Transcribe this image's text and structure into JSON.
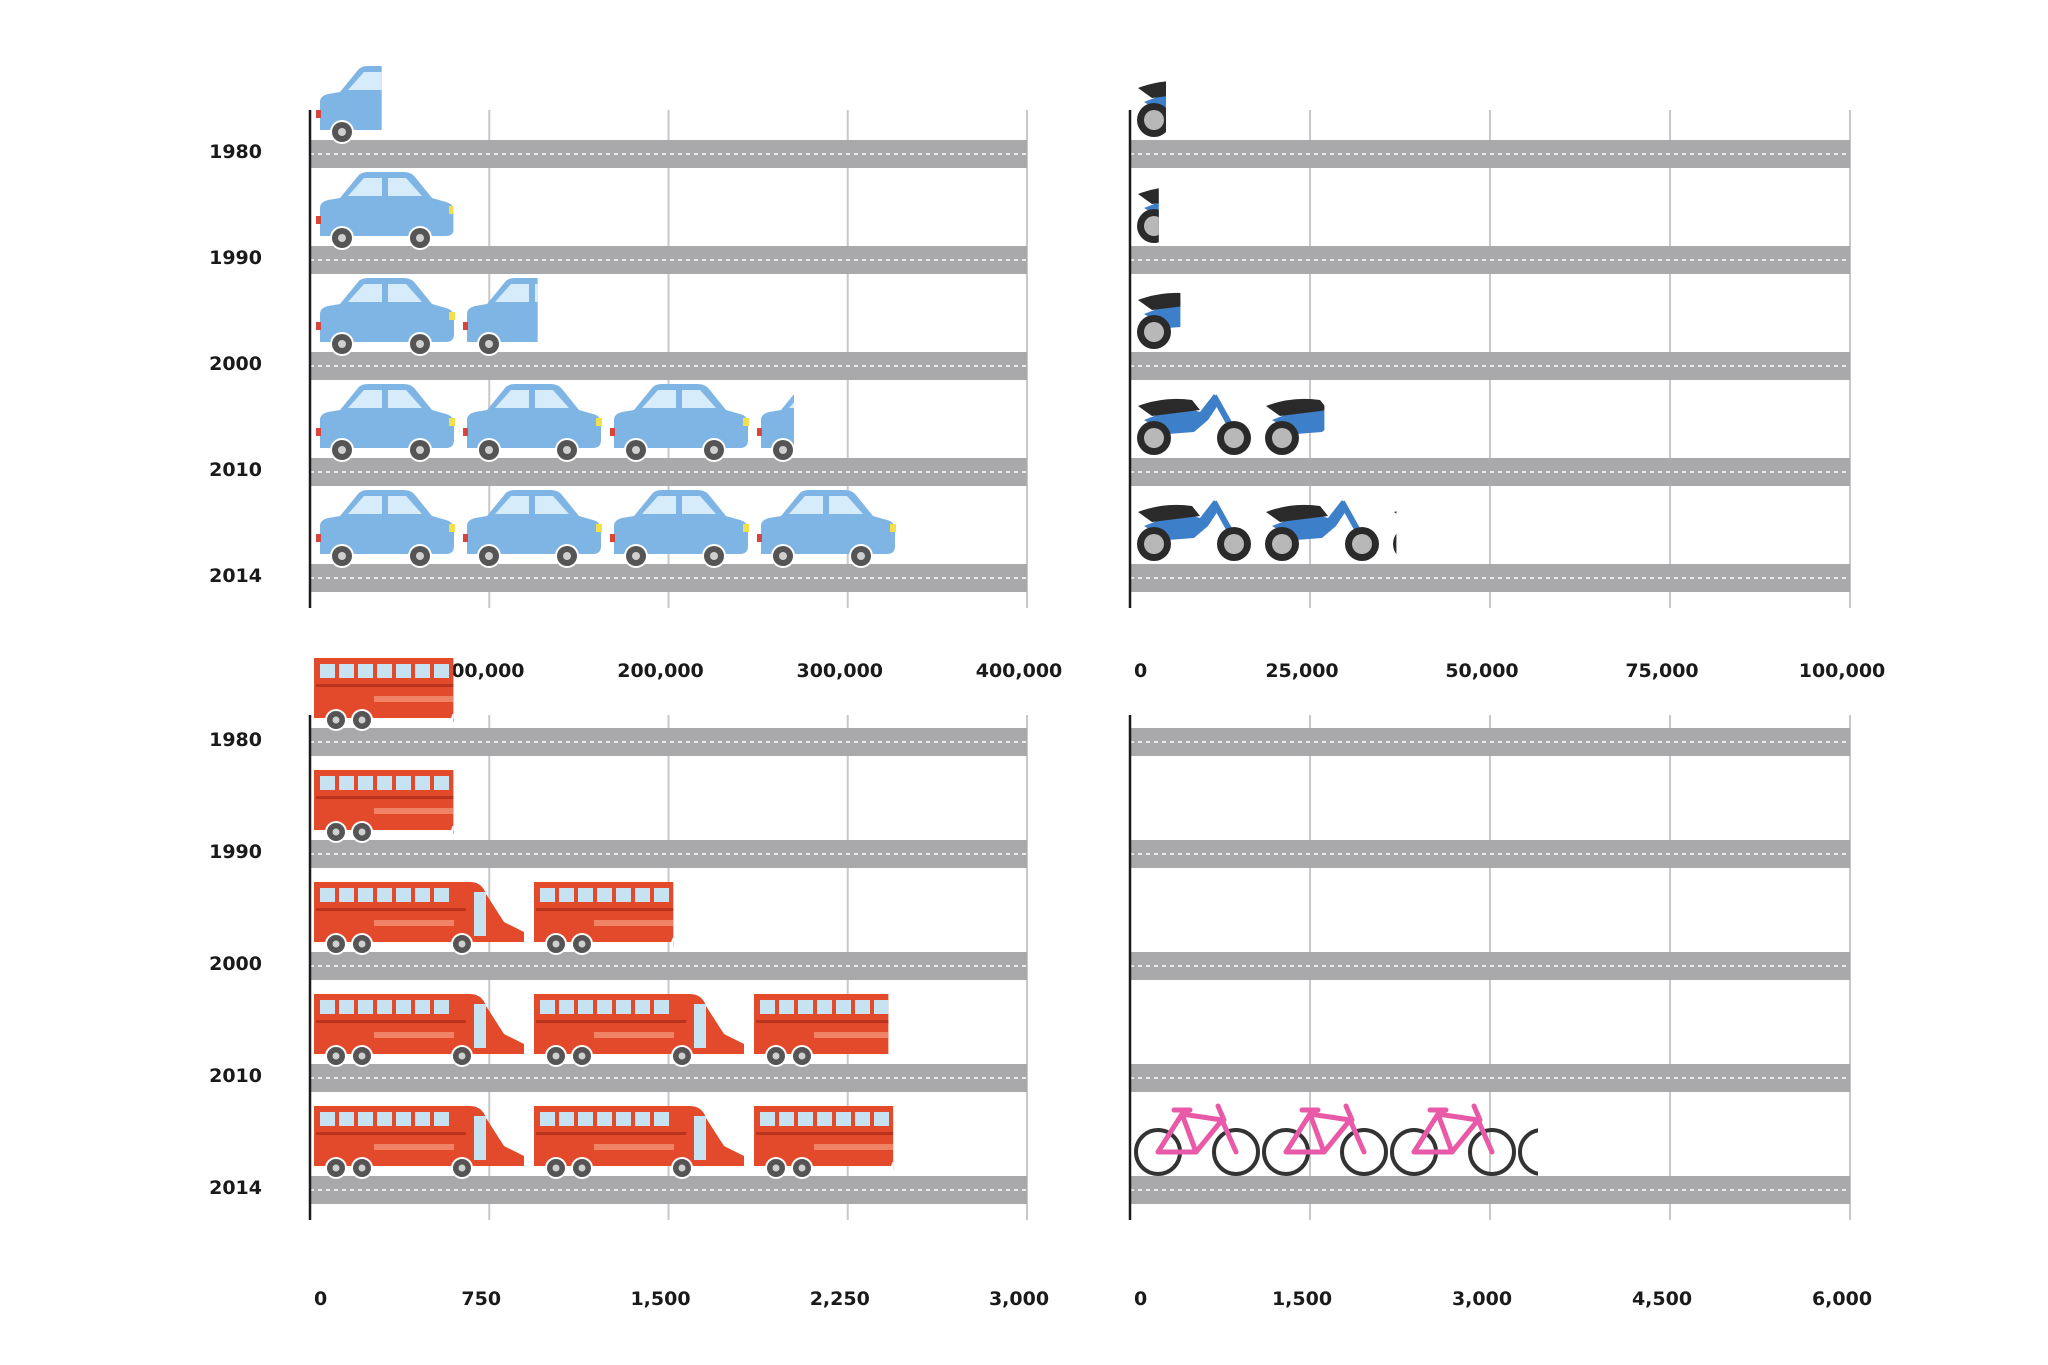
{
  "chart_data": [
    {
      "type": "bar",
      "pictogram": "car",
      "categories": [
        "1980",
        "1990",
        "2000",
        "2010",
        "2014"
      ],
      "values": [
        40000,
        80000,
        127000,
        270000,
        330000
      ],
      "xlim": [
        0,
        400000
      ],
      "xticks": [
        "0",
        "100,000",
        "200,000",
        "300,000",
        "400,000"
      ],
      "colors": {
        "body": "#7fb5e4",
        "window": "#d6ecfa",
        "wheel": "#555555",
        "light": "#f2e04a"
      }
    },
    {
      "type": "bar",
      "pictogram": "motorcycle",
      "categories": [
        "1980",
        "1990",
        "2000",
        "2010",
        "2014"
      ],
      "values": [
        5000,
        4000,
        7000,
        27000,
        37000
      ],
      "xlim": [
        0,
        100000
      ],
      "xticks": [
        "0",
        "25,000",
        "50,000",
        "75,000",
        "100,000"
      ],
      "colors": {
        "body": "#3d7fc9",
        "seat": "#2a2a2a",
        "wheel": "#555555"
      }
    },
    {
      "type": "bar",
      "pictogram": "bus",
      "categories": [
        "1980",
        "1990",
        "2000",
        "2010",
        "2014"
      ],
      "values": [
        600,
        600,
        1520,
        2420,
        2440
      ],
      "xlim": [
        0,
        3000
      ],
      "xticks": [
        "0",
        "750",
        "1,500",
        "2,250",
        "3,000"
      ],
      "colors": {
        "body": "#e24a2b",
        "window": "#c7e3f2",
        "wheel": "#555555"
      }
    },
    {
      "type": "bar",
      "pictogram": "bicycle",
      "categories": [
        "1980",
        "1990",
        "2000",
        "2010",
        "2014"
      ],
      "values": [
        0,
        0,
        0,
        0,
        3400
      ],
      "xlim": [
        0,
        6000
      ],
      "xticks": [
        "0",
        "1,500",
        "3,000",
        "4,500",
        "6,000"
      ],
      "colors": {
        "frame": "#e85aa8",
        "wheel": "#333333"
      }
    }
  ],
  "colors": {
    "road": "#a9a9ab",
    "road_dash": "#ffffff",
    "grid": "#c8c8c8",
    "axis": "#1a1a1a"
  }
}
